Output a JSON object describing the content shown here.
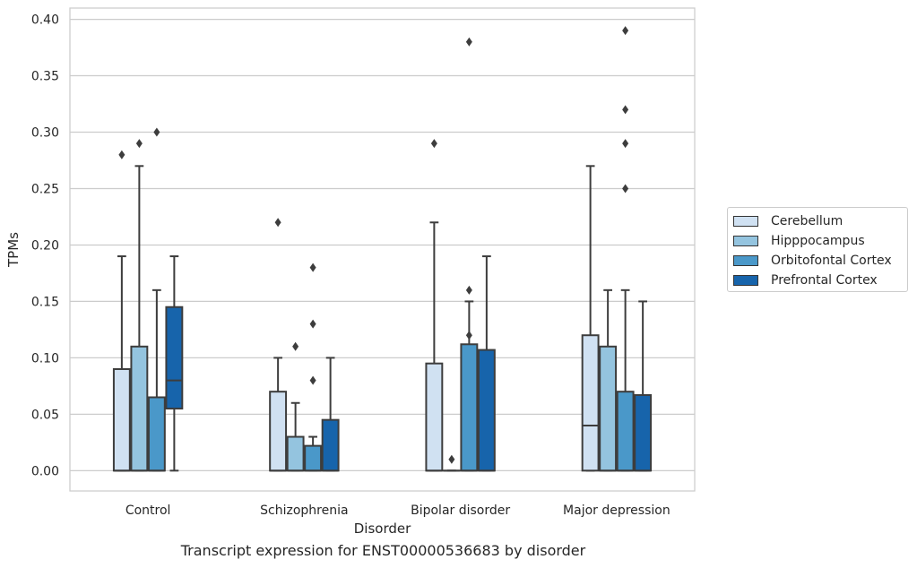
{
  "chart_data": {
    "type": "box",
    "title": "Transcript expression for ENST00000536683 by disorder",
    "xlabel": "Disorder",
    "ylabel": "TPMs",
    "ylim": [
      -0.018,
      0.41
    ],
    "yticks": [
      "0.00",
      "0.05",
      "0.10",
      "0.15",
      "0.20",
      "0.25",
      "0.30",
      "0.35",
      "0.40"
    ],
    "grid": true,
    "legend_position": "right",
    "categories": [
      "Control",
      "Schizophrenia",
      "Bipolar disorder",
      "Major depression"
    ],
    "series": [
      {
        "name": "Cerebellum",
        "color": "#d0e1f2",
        "boxes": [
          {
            "q1": 0.0,
            "median": 0.0,
            "q3": 0.09,
            "whislo": 0.0,
            "whishi": 0.19,
            "fliers": [
              0.28
            ]
          },
          {
            "q1": 0.0,
            "median": 0.0,
            "q3": 0.07,
            "whislo": 0.0,
            "whishi": 0.1,
            "fliers": [
              0.22
            ]
          },
          {
            "q1": 0.0,
            "median": 0.0,
            "q3": 0.095,
            "whislo": 0.0,
            "whishi": 0.22,
            "fliers": [
              0.29
            ]
          },
          {
            "q1": 0.0,
            "median": 0.04,
            "q3": 0.12,
            "whislo": 0.0,
            "whishi": 0.27,
            "fliers": []
          }
        ]
      },
      {
        "name": "Hipppocampus",
        "color": "#94c4df",
        "boxes": [
          {
            "q1": 0.0,
            "median": 0.0,
            "q3": 0.11,
            "whislo": 0.0,
            "whishi": 0.27,
            "fliers": [
              0.29
            ]
          },
          {
            "q1": 0.0,
            "median": 0.0,
            "q3": 0.03,
            "whislo": 0.0,
            "whishi": 0.06,
            "fliers": [
              0.11
            ]
          },
          {
            "q1": 0.0,
            "median": 0.0,
            "q3": 0.0,
            "whislo": 0.0,
            "whishi": 0.0,
            "fliers": [
              0.01
            ]
          },
          {
            "q1": 0.0,
            "median": 0.0,
            "q3": 0.11,
            "whislo": 0.0,
            "whishi": 0.16,
            "fliers": []
          }
        ]
      },
      {
        "name": "Orbitofontal Cortex",
        "color": "#4a98c9",
        "boxes": [
          {
            "q1": 0.0,
            "median": 0.0,
            "q3": 0.065,
            "whislo": 0.0,
            "whishi": 0.16,
            "fliers": [
              0.3
            ]
          },
          {
            "q1": 0.0,
            "median": 0.0,
            "q3": 0.022,
            "whislo": 0.0,
            "whishi": 0.03,
            "fliers": [
              0.08,
              0.13,
              0.18
            ]
          },
          {
            "q1": 0.0,
            "median": 0.0,
            "q3": 0.112,
            "whislo": 0.0,
            "whishi": 0.15,
            "fliers": [
              0.12,
              0.16,
              0.38
            ]
          },
          {
            "q1": 0.0,
            "median": 0.0,
            "q3": 0.07,
            "whislo": 0.0,
            "whishi": 0.16,
            "fliers": [
              0.25,
              0.29,
              0.32,
              0.39
            ]
          }
        ]
      },
      {
        "name": "Prefrontal Cortex",
        "color": "#1764ab",
        "boxes": [
          {
            "q1": 0.055,
            "median": 0.08,
            "q3": 0.145,
            "whislo": 0.0,
            "whishi": 0.19,
            "fliers": []
          },
          {
            "q1": 0.0,
            "median": 0.0,
            "q3": 0.045,
            "whislo": 0.0,
            "whishi": 0.1,
            "fliers": []
          },
          {
            "q1": 0.0,
            "median": 0.0,
            "q3": 0.107,
            "whislo": 0.0,
            "whishi": 0.19,
            "fliers": []
          },
          {
            "q1": 0.0,
            "median": 0.0,
            "q3": 0.067,
            "whislo": 0.0,
            "whishi": 0.15,
            "fliers": []
          }
        ]
      }
    ]
  }
}
